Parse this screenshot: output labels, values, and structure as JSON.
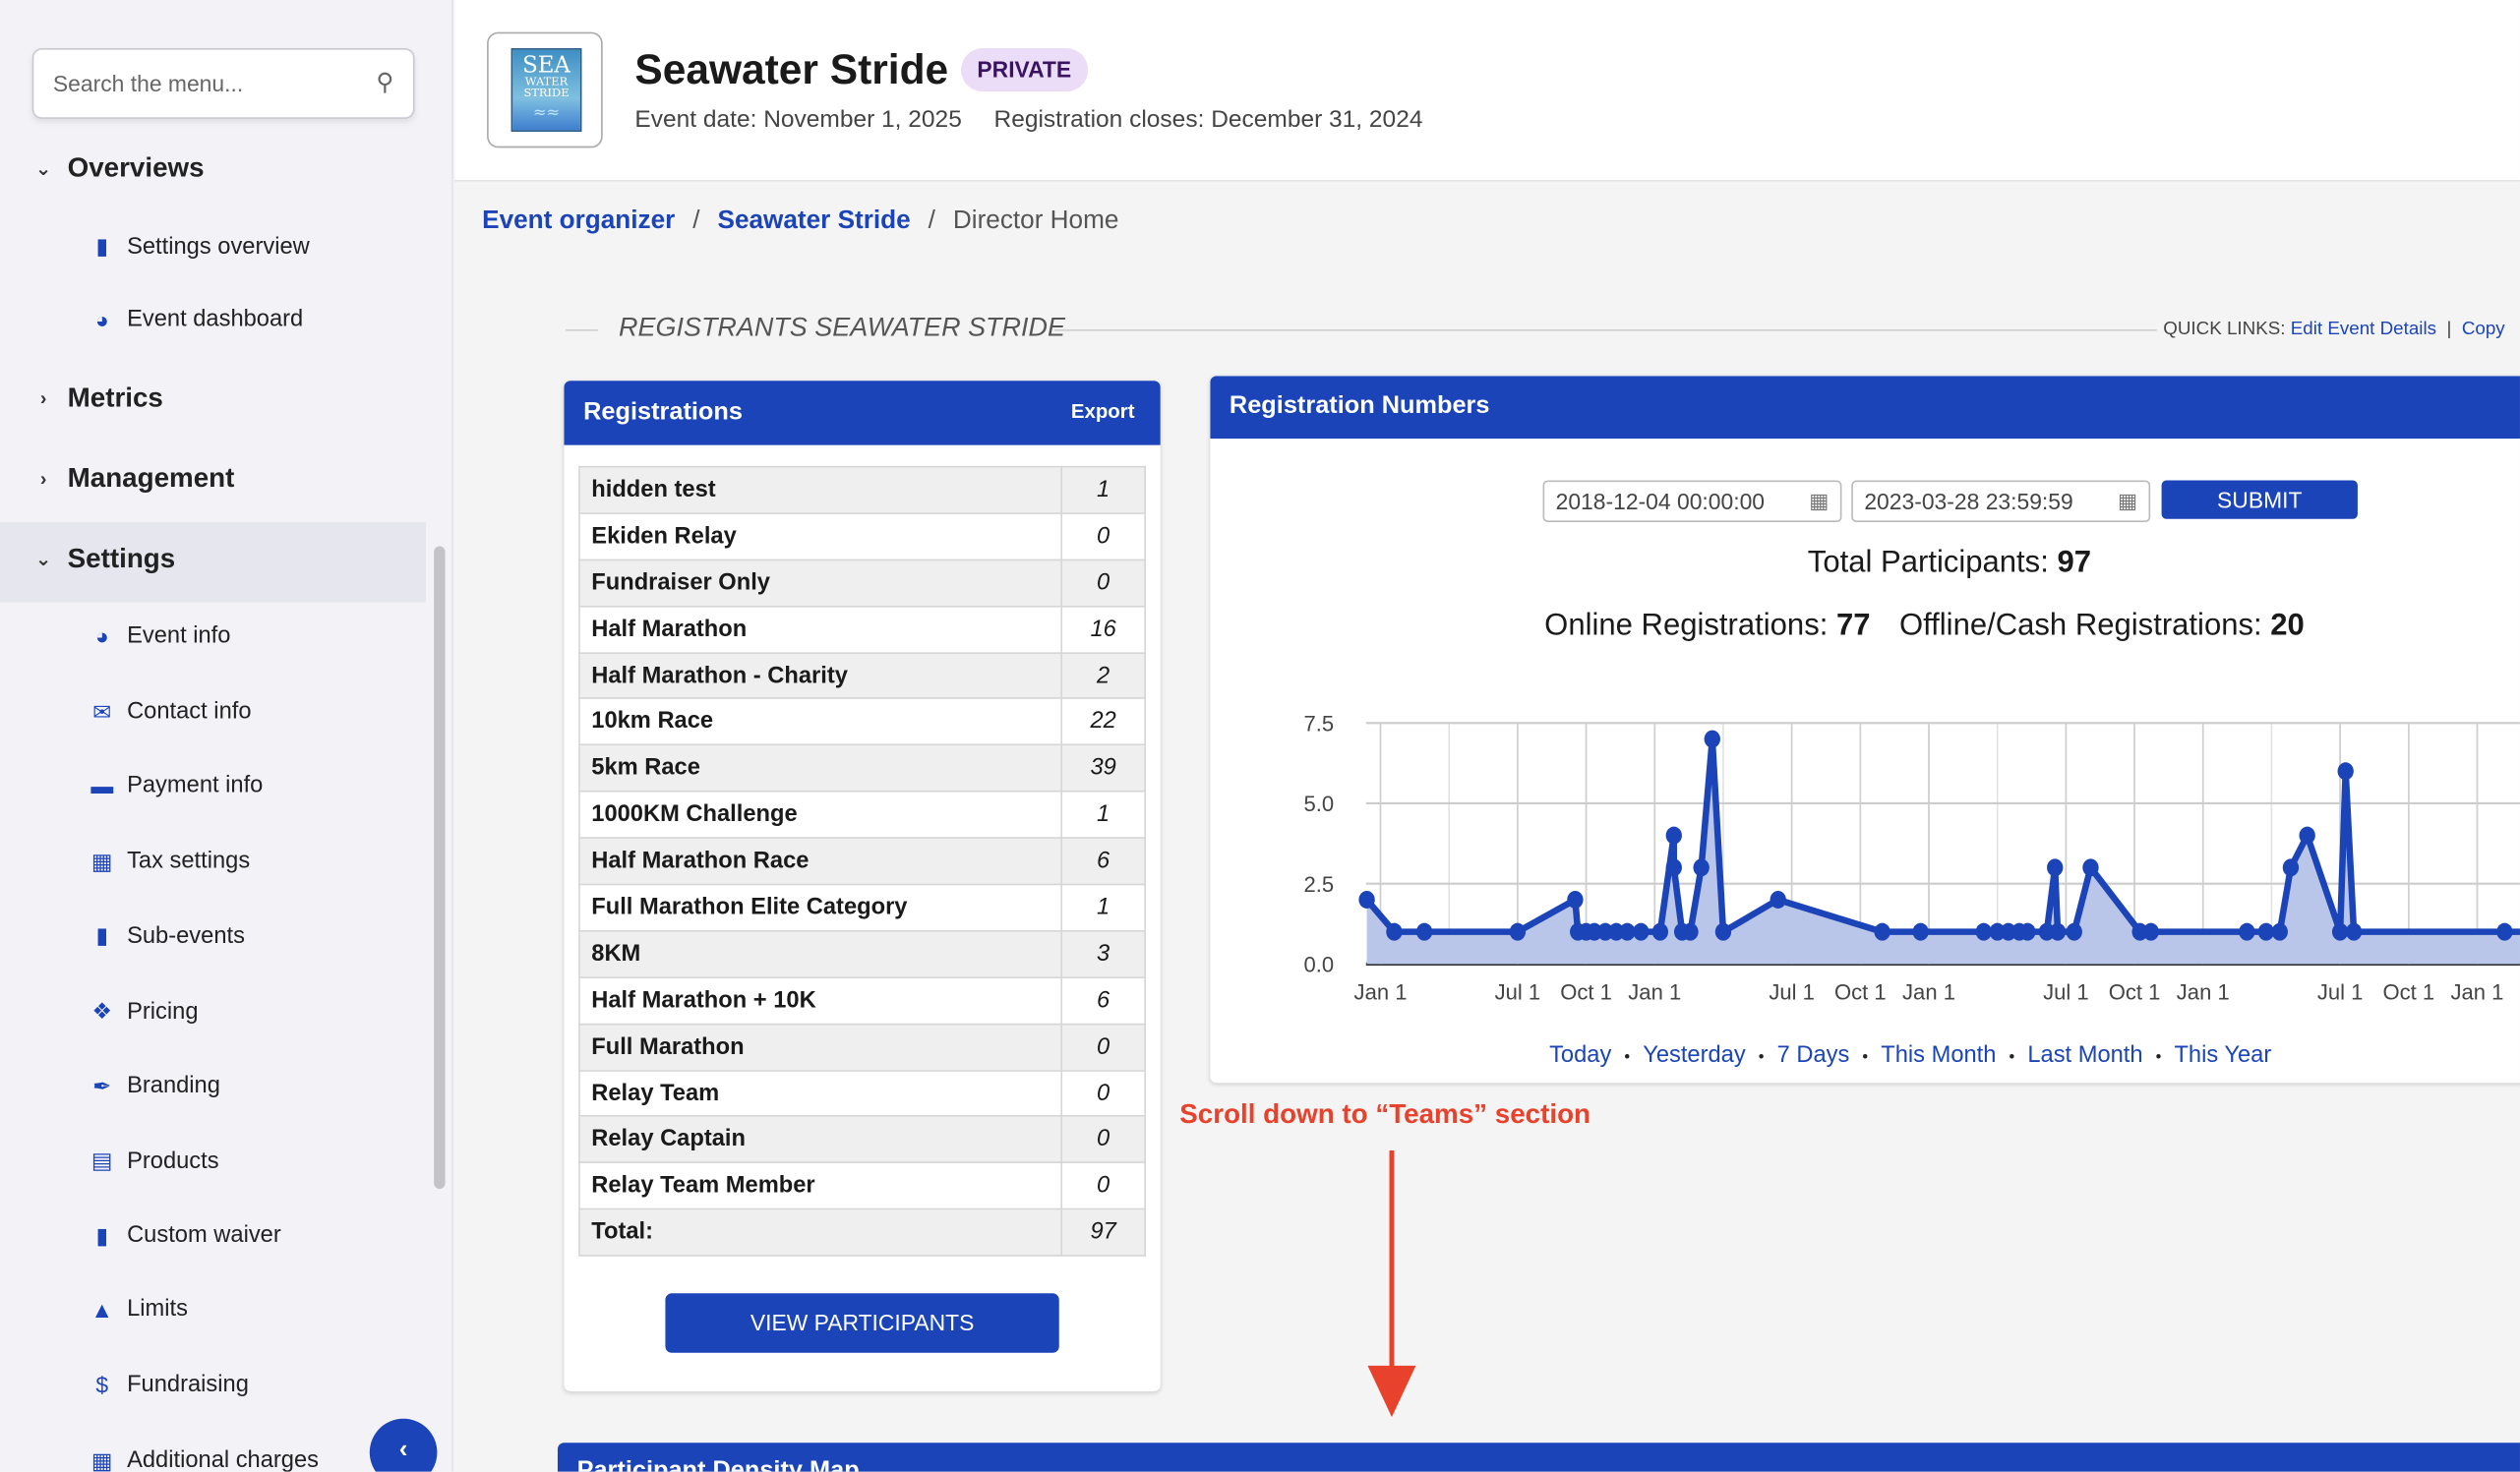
{
  "sidebar": {
    "search_placeholder": "Search the menu...",
    "groups": {
      "overviews": "Overviews",
      "metrics": "Metrics",
      "management": "Management",
      "settings": "Settings"
    },
    "overview_items": [
      "Settings overview",
      "Event dashboard"
    ],
    "settings_items": [
      "Event info",
      "Contact info",
      "Payment info",
      "Tax settings",
      "Sub-events",
      "Pricing",
      "Branding",
      "Products",
      "Custom waiver",
      "Limits",
      "Fundraising",
      "Additional charges"
    ]
  },
  "header": {
    "logo_text": [
      "SEA",
      "WATER",
      "STRIDE"
    ],
    "title": "Seawater Stride",
    "badge": "PRIVATE",
    "event_date": "Event date: November 1, 2025",
    "reg_closes": "Registration closes: December 31, 2024"
  },
  "breadcrumb": {
    "items": [
      "Event organizer",
      "Seawater Stride"
    ],
    "sep": "/",
    "current": "Director Home"
  },
  "section": {
    "title": "REGISTRANTS SEAWATER STRIDE",
    "quick_links_label": "QUICK LINKS:",
    "quick_links": [
      "Edit Event Details",
      "Copy"
    ],
    "sep": "|"
  },
  "registrations": {
    "title": "Registrations",
    "export": "Export",
    "rows": [
      {
        "name": "hidden test",
        "count": "1"
      },
      {
        "name": "Ekiden Relay",
        "count": "0"
      },
      {
        "name": "Fundraiser Only",
        "count": "0"
      },
      {
        "name": "Half Marathon",
        "count": "16"
      },
      {
        "name": "Half Marathon - Charity",
        "count": "2"
      },
      {
        "name": "10km Race",
        "count": "22"
      },
      {
        "name": "5km Race",
        "count": "39"
      },
      {
        "name": "1000KM Challenge",
        "count": "1"
      },
      {
        "name": "Half Marathon Race",
        "count": "6"
      },
      {
        "name": "Full Marathon Elite Category",
        "count": "1"
      },
      {
        "name": "8KM",
        "count": "3"
      },
      {
        "name": "Half Marathon + 10K",
        "count": "6"
      },
      {
        "name": "Full Marathon",
        "count": "0"
      },
      {
        "name": "Relay Team",
        "count": "0"
      },
      {
        "name": "Relay Captain",
        "count": "0"
      },
      {
        "name": "Relay Team Member",
        "count": "0"
      },
      {
        "name": "Total:",
        "count": "97"
      }
    ],
    "view_button": "VIEW PARTICIPANTS"
  },
  "numbers": {
    "title": "Registration Numbers",
    "start_date": "2018-12-04 00:00:00",
    "end_date": "2023-03-28 23:59:59",
    "submit": "SUBMIT",
    "total_label": "Total Participants:",
    "total": "97",
    "online_label": "Online Registrations:",
    "online": "77",
    "offline_label": "Offline/Cash Registrations:",
    "offline": "20",
    "range_links": [
      "Today",
      "Yesterday",
      "7 Days",
      "This Month",
      "Last Month",
      "This Year"
    ]
  },
  "chart_data": {
    "type": "area",
    "title": "",
    "xlabel": "",
    "ylabel": "",
    "ylim": [
      0,
      7.5
    ],
    "yticks": [
      "0.0",
      "2.5",
      "5.0",
      "7.5"
    ],
    "xlim": [
      2018.92,
      2023.24
    ],
    "xticks": [
      {
        "x": 2019,
        "label": "Jan 1"
      },
      {
        "x": 2019.5,
        "label": "Jul 1"
      },
      {
        "x": 2019.75,
        "label": "Oct 1"
      },
      {
        "x": 2020,
        "label": "Jan 1"
      },
      {
        "x": 2020.5,
        "label": "Jul 1"
      },
      {
        "x": 2020.75,
        "label": "Oct 1"
      },
      {
        "x": 2021,
        "label": "Jan 1"
      },
      {
        "x": 2021.5,
        "label": "Jul 1"
      },
      {
        "x": 2021.75,
        "label": "Oct 1"
      },
      {
        "x": 2022,
        "label": "Jan 1"
      },
      {
        "x": 2022.5,
        "label": "Jul 1"
      },
      {
        "x": 2022.75,
        "label": "Oct 1"
      },
      {
        "x": 2023,
        "label": "Jan 1"
      }
    ],
    "series": [
      {
        "name": "Registrations",
        "color": "#1b44b8",
        "points": [
          [
            2018.95,
            2
          ],
          [
            2019.05,
            1
          ],
          [
            2019.16,
            1
          ],
          [
            2019.5,
            1
          ],
          [
            2019.71,
            2
          ],
          [
            2019.72,
            1
          ],
          [
            2019.75,
            1
          ],
          [
            2019.78,
            1
          ],
          [
            2019.82,
            1
          ],
          [
            2019.86,
            1
          ],
          [
            2019.9,
            1
          ],
          [
            2019.95,
            1
          ],
          [
            2020.02,
            1
          ],
          [
            2020.07,
            4
          ],
          [
            2020.07,
            3
          ],
          [
            2020.1,
            1
          ],
          [
            2020.13,
            1
          ],
          [
            2020.17,
            3
          ],
          [
            2020.21,
            7
          ],
          [
            2020.25,
            1
          ],
          [
            2020.45,
            2
          ],
          [
            2020.83,
            1
          ],
          [
            2020.97,
            1
          ],
          [
            2021.2,
            1
          ],
          [
            2021.25,
            1
          ],
          [
            2021.29,
            1
          ],
          [
            2021.33,
            1
          ],
          [
            2021.36,
            1
          ],
          [
            2021.43,
            1
          ],
          [
            2021.46,
            3
          ],
          [
            2021.47,
            1
          ],
          [
            2021.53,
            1
          ],
          [
            2021.59,
            3
          ],
          [
            2021.77,
            1
          ],
          [
            2021.81,
            1
          ],
          [
            2022.16,
            1
          ],
          [
            2022.23,
            1
          ],
          [
            2022.28,
            1
          ],
          [
            2022.32,
            3
          ],
          [
            2022.38,
            4
          ],
          [
            2022.5,
            1
          ],
          [
            2022.52,
            6
          ],
          [
            2022.55,
            1
          ],
          [
            2023.1,
            1
          ],
          [
            2023.24,
            1
          ]
        ]
      }
    ]
  },
  "annotation": {
    "text": "Scroll down to “Teams” section",
    "color": "#e8412c"
  },
  "map": {
    "title": "Participant Density Map"
  }
}
